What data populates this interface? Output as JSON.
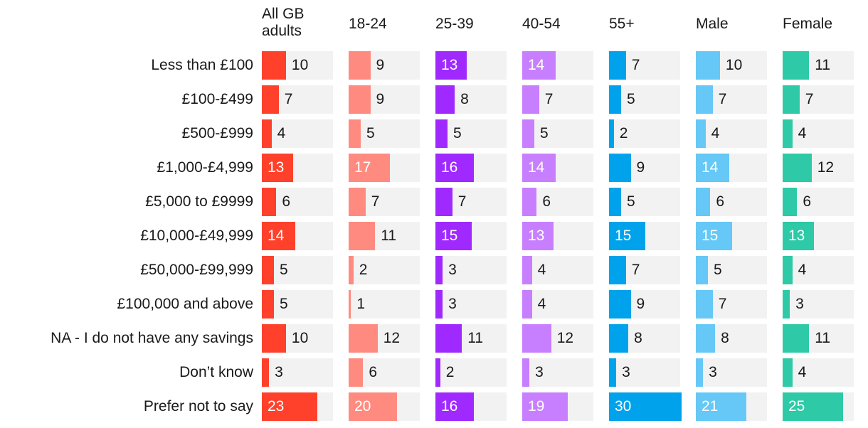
{
  "chart_data": {
    "type": "bar",
    "categories": [
      "Less than £100",
      "£100-£499",
      "£500-£999",
      "£1,000-£4,999",
      "£5,000 to £9999",
      "£10,000-£49,999",
      "£50,000-£99,999",
      "£100,000 and above",
      "NA - I do not have any savings",
      "Don’t know",
      "Prefer not to say"
    ],
    "series": [
      {
        "name": "All GB\nadults",
        "color": "#ff412c",
        "values": [
          10,
          7,
          4,
          13,
          6,
          14,
          5,
          5,
          10,
          3,
          23
        ]
      },
      {
        "name": "18-24",
        "color": "#ff8b80",
        "values": [
          9,
          9,
          5,
          17,
          7,
          11,
          2,
          1,
          12,
          6,
          20
        ]
      },
      {
        "name": "25-39",
        "color": "#9f29ff",
        "values": [
          13,
          8,
          5,
          16,
          7,
          15,
          3,
          3,
          11,
          2,
          16
        ]
      },
      {
        "name": "40-54",
        "color": "#c77fff",
        "values": [
          14,
          7,
          5,
          14,
          6,
          13,
          4,
          4,
          12,
          3,
          19
        ]
      },
      {
        "name": "55+",
        "color": "#00a3eb",
        "values": [
          7,
          5,
          2,
          9,
          5,
          15,
          7,
          9,
          8,
          3,
          30
        ]
      },
      {
        "name": "Male",
        "color": "#65c8f6",
        "values": [
          10,
          7,
          4,
          14,
          6,
          15,
          5,
          7,
          8,
          3,
          21
        ]
      },
      {
        "name": "Female",
        "color": "#2ec9a6",
        "values": [
          11,
          7,
          4,
          12,
          6,
          13,
          4,
          3,
          11,
          4,
          25
        ]
      }
    ],
    "xlim": [
      0,
      30
    ],
    "inside_label_threshold": 13,
    "track_color": "#f2f2f2",
    "label_dark": "#1a1a1a",
    "label_light": "#ffffff"
  }
}
